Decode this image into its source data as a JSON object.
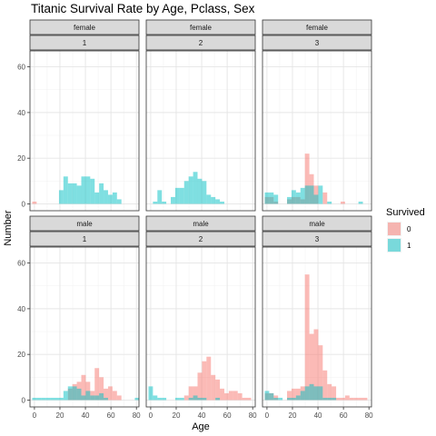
{
  "chart_data": {
    "type": "histogram",
    "title": "Titanic Survival Rate by Age, Pclass, Sex",
    "xlabel": "Age",
    "ylabel": "Number",
    "bin_width": 3.5,
    "bin_start": -1.75,
    "xlim": [
      -3.5,
      82
    ],
    "ylim": [
      -3,
      67
    ],
    "x_ticks": [
      0,
      20,
      40,
      60,
      80
    ],
    "y_ticks": [
      0,
      20,
      40,
      60
    ],
    "grid": true,
    "legend": {
      "title": "Survived",
      "position": "right",
      "items": [
        {
          "label": "0",
          "color": "#f8766d"
        },
        {
          "label": "1",
          "color": "#00bfc4"
        }
      ]
    },
    "panels": [
      {
        "sex": "female",
        "pclass": "1",
        "not_survived": [
          1,
          0,
          0,
          0,
          0,
          0,
          0,
          0,
          0,
          0,
          0,
          0,
          0,
          0,
          0,
          0,
          0,
          0,
          0,
          0,
          0,
          0,
          0,
          0
        ],
        "survived": [
          0,
          0,
          0,
          0,
          0,
          0,
          6,
          12,
          9,
          9,
          8,
          12,
          12,
          11,
          5,
          9,
          6,
          4,
          5,
          2,
          0,
          0,
          0,
          0
        ]
      },
      {
        "sex": "female",
        "pclass": "2",
        "not_survived": [
          0,
          0,
          0,
          0,
          0,
          0,
          0,
          0,
          0,
          0,
          0,
          0,
          0,
          0,
          0,
          0,
          0,
          0,
          0,
          0,
          0,
          0,
          0,
          0
        ],
        "survived": [
          0,
          1,
          6,
          1,
          0,
          3,
          7,
          7,
          10,
          12,
          14,
          11,
          10,
          4,
          3,
          2,
          1,
          0,
          0,
          0,
          0,
          0,
          0,
          0
        ]
      },
      {
        "sex": "female",
        "pclass": "3",
        "not_survived": [
          3,
          3,
          1,
          0,
          0,
          2,
          3,
          3,
          2,
          22,
          13,
          8,
          0,
          5,
          0,
          0,
          0,
          1,
          0,
          0,
          0,
          0,
          0,
          0
        ],
        "survived": [
          5,
          5,
          4,
          0,
          0,
          3,
          6,
          5,
          7,
          8,
          8,
          4,
          8,
          0,
          1,
          0,
          0,
          0,
          0,
          0,
          0,
          1,
          0,
          0
        ]
      },
      {
        "sex": "male",
        "pclass": "1",
        "not_survived": [
          0,
          0,
          0,
          0,
          0,
          0,
          0,
          0,
          5,
          7,
          8,
          11,
          8,
          4,
          14,
          10,
          5,
          6,
          4,
          2,
          0,
          0,
          0,
          0
        ],
        "survived": [
          1,
          1,
          1,
          1,
          1,
          1,
          1,
          4,
          6,
          6,
          5,
          2,
          4,
          2,
          2,
          3,
          1,
          0,
          0,
          0,
          0,
          0,
          0,
          1
        ]
      },
      {
        "sex": "male",
        "pclass": "2",
        "not_survived": [
          0,
          0,
          0,
          0,
          0,
          0,
          0,
          0,
          2,
          6,
          6,
          12,
          17,
          19,
          11,
          9,
          5,
          3,
          4,
          4,
          3,
          1,
          1,
          0
        ],
        "survived": [
          6,
          2,
          1,
          1,
          0,
          0,
          1,
          1,
          0,
          1,
          2,
          1,
          1,
          0,
          0,
          1,
          0,
          0,
          0,
          0,
          0,
          0,
          0,
          0
        ]
      },
      {
        "sex": "male",
        "pclass": "3",
        "not_survived": [
          3,
          3,
          2,
          0,
          0,
          4,
          5,
          5,
          6,
          55,
          29,
          31,
          24,
          13,
          7,
          6,
          1,
          1,
          2,
          1,
          1,
          1,
          1,
          0
        ],
        "survived": [
          4,
          3,
          1,
          1,
          0,
          1,
          1,
          2,
          4,
          6,
          7,
          6,
          6,
          1,
          1,
          1,
          0,
          0,
          0,
          0,
          0,
          0,
          0,
          0
        ]
      }
    ]
  }
}
